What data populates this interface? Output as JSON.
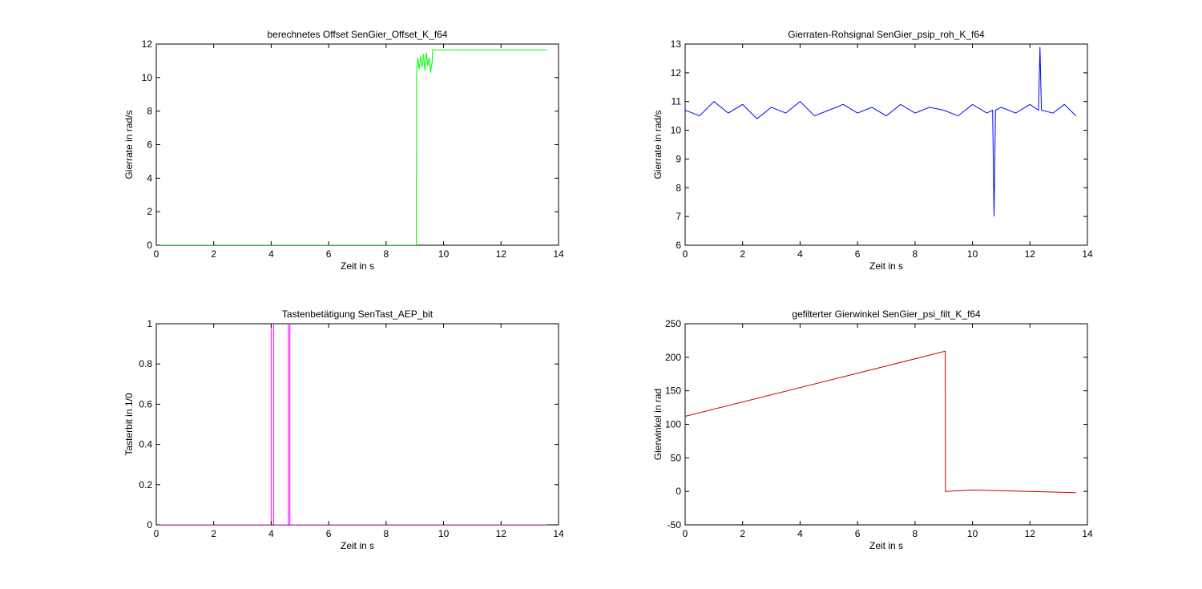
{
  "chart_data": [
    {
      "type": "line",
      "title": "berechnetes Offset SenGier_Offset_K_f64",
      "xlabel": "Zeit in s",
      "ylabel": "Gierrate in rad/s",
      "xlim": [
        0,
        14
      ],
      "ylim": [
        0,
        12
      ],
      "xticks": [
        0,
        2,
        4,
        6,
        8,
        10,
        12,
        14
      ],
      "yticks": [
        0,
        2,
        4,
        6,
        8,
        10,
        12
      ],
      "grid": false,
      "series": [
        {
          "color": "#00ff00",
          "x": [
            0,
            9.05,
            9.06,
            9.1,
            9.15,
            9.2,
            9.25,
            9.3,
            9.35,
            9.4,
            9.45,
            9.5,
            9.55,
            9.6,
            9.62,
            13.6
          ],
          "y": [
            0,
            0,
            10.3,
            11.2,
            10.5,
            11.3,
            10.6,
            11.4,
            10.4,
            11.5,
            10.7,
            11.2,
            10.3,
            10.9,
            11.65,
            11.65
          ]
        }
      ]
    },
    {
      "type": "line",
      "title": "Gierraten-Rohsignal SenGier_psip_roh_K_f64",
      "xlabel": "Zeit in s",
      "ylabel": "Gierrate in rad/s",
      "xlim": [
        0,
        14
      ],
      "ylim": [
        6,
        13
      ],
      "xticks": [
        0,
        2,
        4,
        6,
        8,
        10,
        12,
        14
      ],
      "yticks": [
        6,
        7,
        8,
        9,
        10,
        11,
        12,
        13
      ],
      "grid": false,
      "series": [
        {
          "color": "#0000ff",
          "x": [
            0,
            0.5,
            1.0,
            1.5,
            2.0,
            2.5,
            3.0,
            3.5,
            4.0,
            4.5,
            5.0,
            5.5,
            6.0,
            6.5,
            7.0,
            7.5,
            8.0,
            8.5,
            9.0,
            9.5,
            10.0,
            10.5,
            10.7,
            10.75,
            10.8,
            11.0,
            11.5,
            12.0,
            12.3,
            12.35,
            12.4,
            12.8,
            13.2,
            13.6
          ],
          "y": [
            10.7,
            10.5,
            11.0,
            10.6,
            10.9,
            10.4,
            10.8,
            10.6,
            11.0,
            10.5,
            10.7,
            10.9,
            10.6,
            10.8,
            10.5,
            10.9,
            10.6,
            10.8,
            10.7,
            10.5,
            10.9,
            10.6,
            10.7,
            7.0,
            10.7,
            10.8,
            10.6,
            10.9,
            10.7,
            12.9,
            10.7,
            10.6,
            10.9,
            10.5
          ]
        }
      ]
    },
    {
      "type": "line",
      "title": "Tastenbetätigung SenTast_AEP_bit",
      "xlabel": "Zeit in s",
      "ylabel": "Tasterbit in 1/0",
      "xlim": [
        0,
        14
      ],
      "ylim": [
        0,
        1
      ],
      "xticks": [
        0,
        2,
        4,
        6,
        8,
        10,
        12,
        14
      ],
      "yticks": [
        0,
        0.2,
        0.4,
        0.6,
        0.8,
        1
      ],
      "grid": false,
      "series": [
        {
          "color": "#ff00ff",
          "x": [
            0,
            4.0,
            4.0,
            4.08,
            4.08,
            4.6,
            4.6,
            4.65,
            4.65,
            13.6
          ],
          "y": [
            0,
            0,
            1,
            1,
            0,
            0,
            1,
            1,
            0,
            0
          ]
        }
      ]
    },
    {
      "type": "line",
      "title": "gefilterter Gierwinkel SenGier_psi_filt_K_f64",
      "xlabel": "Zeit in s",
      "ylabel": "Gierwinkel in rad",
      "xlim": [
        0,
        14
      ],
      "ylim": [
        -50,
        250
      ],
      "xticks": [
        0,
        2,
        4,
        6,
        8,
        10,
        12,
        14
      ],
      "yticks": [
        -50,
        0,
        50,
        100,
        150,
        200,
        250
      ],
      "grid": false,
      "series": [
        {
          "color": "#cc0000",
          "x": [
            0,
            9.05,
            9.06,
            10.0,
            12.0,
            13.6
          ],
          "y": [
            112,
            209,
            0,
            2,
            0,
            -2
          ]
        }
      ]
    }
  ]
}
